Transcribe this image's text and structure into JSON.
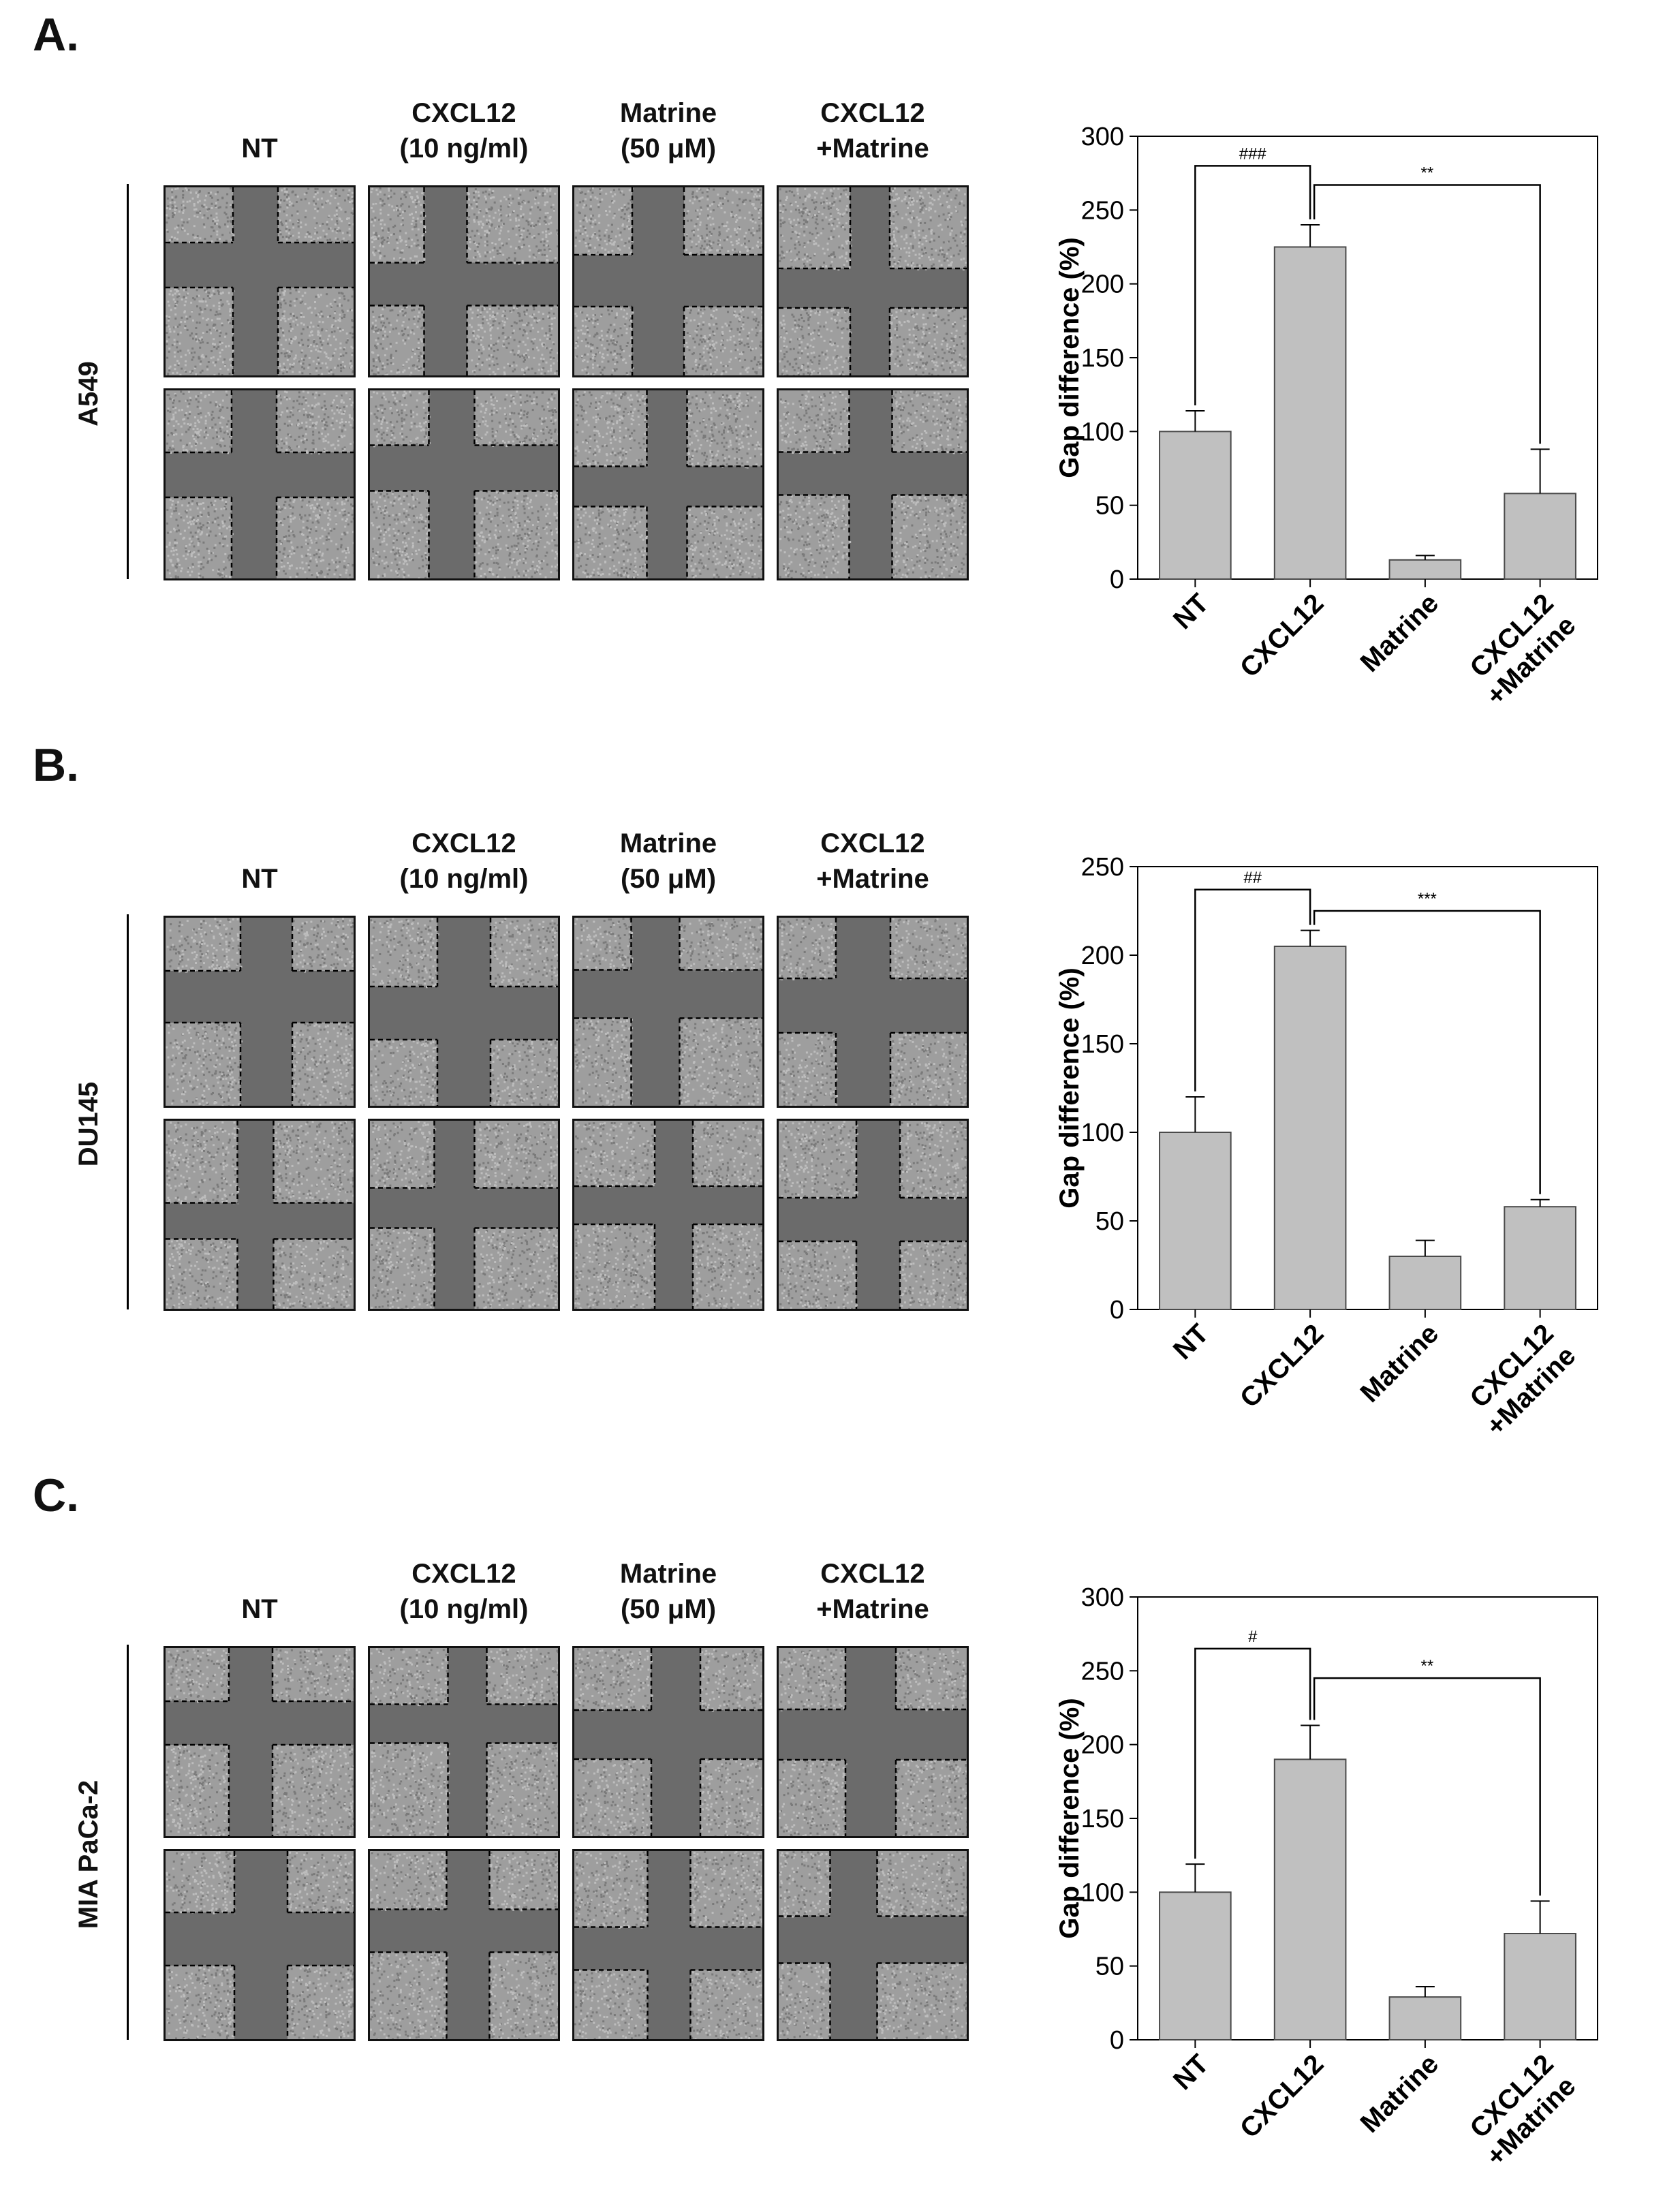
{
  "colors": {
    "bar": "#c0c0c0",
    "bar_stroke": "#4a4a4a",
    "axis": "#000000",
    "tissue": "#6b6b6b",
    "cells": "#bdbdbd"
  },
  "panels": [
    {
      "label": "A.",
      "cell_line": "A549",
      "columns": [
        {
          "line1": "",
          "line2": "NT"
        },
        {
          "line1": "CXCL12",
          "line2": "(10 ng/ml)"
        },
        {
          "line1": "Matrine",
          "line2": "(50 μM)"
        },
        {
          "line1": "CXCL12",
          "line2": "+Matrine"
        }
      ]
    },
    {
      "label": "B.",
      "cell_line": "DU145",
      "columns": [
        {
          "line1": "",
          "line2": "NT"
        },
        {
          "line1": "CXCL12",
          "line2": "(10 ng/ml)"
        },
        {
          "line1": "Matrine",
          "line2": "(50 μM)"
        },
        {
          "line1": "CXCL12",
          "line2": "+Matrine"
        }
      ]
    },
    {
      "label": "C.",
      "cell_line": "MIA PaCa-2",
      "columns": [
        {
          "line1": "",
          "line2": "NT"
        },
        {
          "line1": "CXCL12",
          "line2": "(10 ng/ml)"
        },
        {
          "line1": "Matrine",
          "line2": "(50 μM)"
        },
        {
          "line1": "CXCL12",
          "line2": "+Matrine"
        }
      ]
    }
  ],
  "chart_data": [
    {
      "type": "bar",
      "title": "",
      "ylabel": "Gap difference (%)",
      "xlabel": "",
      "ylim": [
        0,
        300
      ],
      "yticks": [
        0,
        50,
        100,
        150,
        200,
        250,
        300
      ],
      "categories": [
        "NT",
        "CXCL12",
        "Matrine",
        "CXCL12 +Matrine"
      ],
      "category_lines": [
        [
          "NT"
        ],
        [
          "CXCL12"
        ],
        [
          "Matrine"
        ],
        [
          "CXCL12",
          "+Matrine"
        ]
      ],
      "values": [
        100,
        225,
        13,
        58
      ],
      "errors": [
        14,
        15,
        3,
        30
      ],
      "annotations": [
        {
          "from": 0,
          "to": 1,
          "text": "###",
          "level": 280
        },
        {
          "from": 1,
          "to": 3,
          "text": "**",
          "level": 267
        }
      ]
    },
    {
      "type": "bar",
      "title": "",
      "ylabel": "Gap difference (%)",
      "xlabel": "",
      "ylim": [
        0,
        250
      ],
      "yticks": [
        0,
        50,
        100,
        150,
        200,
        250
      ],
      "categories": [
        "NT",
        "CXCL12",
        "Matrine",
        "CXCL12 +Matrine"
      ],
      "category_lines": [
        [
          "NT"
        ],
        [
          "CXCL12"
        ],
        [
          "Matrine"
        ],
        [
          "CXCL12",
          "+Matrine"
        ]
      ],
      "values": [
        100,
        205,
        30,
        58
      ],
      "errors": [
        20,
        9,
        9,
        4
      ],
      "annotations": [
        {
          "from": 0,
          "to": 1,
          "text": "##",
          "level": 237
        },
        {
          "from": 1,
          "to": 3,
          "text": "***",
          "level": 225
        }
      ]
    },
    {
      "type": "bar",
      "title": "",
      "ylabel": "Gap difference (%)",
      "xlabel": "",
      "ylim": [
        0,
        300
      ],
      "yticks": [
        0,
        50,
        100,
        150,
        200,
        250,
        300
      ],
      "categories": [
        "NT",
        "CXCL12",
        "Matrine",
        "CXCL12 +Matrine"
      ],
      "category_lines": [
        [
          "NT"
        ],
        [
          "CXCL12"
        ],
        [
          "Matrine"
        ],
        [
          "CXCL12",
          "+Matrine"
        ]
      ],
      "values": [
        100,
        190,
        29,
        72
      ],
      "errors": [
        19,
        23,
        7,
        22
      ],
      "annotations": [
        {
          "from": 0,
          "to": 1,
          "text": "#",
          "level": 265
        },
        {
          "from": 1,
          "to": 3,
          "text": "**",
          "level": 245
        }
      ]
    }
  ]
}
